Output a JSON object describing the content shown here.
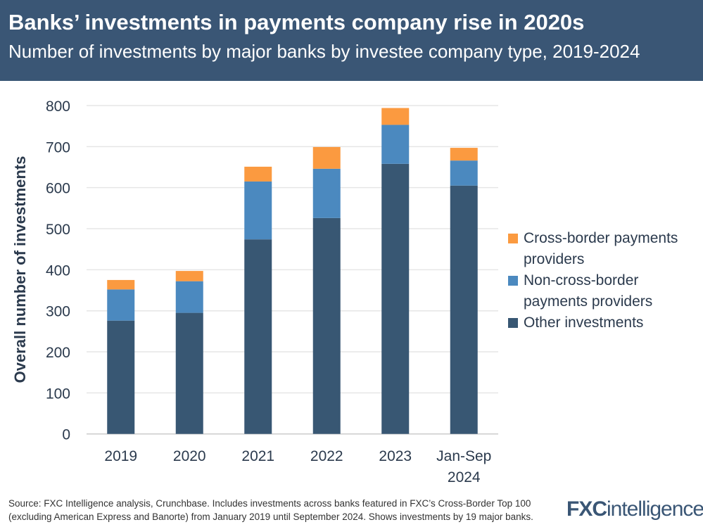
{
  "header": {
    "title": "Banks’ investments in payments company rise in 2020s",
    "subtitle": "Number of investments by major banks by investee company type, 2019-2024"
  },
  "chart_data": {
    "type": "bar",
    "stacked": true,
    "categories": [
      "2019",
      "2020",
      "2021",
      "2022",
      "2023",
      "Jan-Sep 2024"
    ],
    "category_lines": [
      [
        "2019"
      ],
      [
        "2020"
      ],
      [
        "2021"
      ],
      [
        "2022"
      ],
      [
        "2023"
      ],
      [
        "Jan-Sep",
        "2024"
      ]
    ],
    "series": [
      {
        "name": "Other investments",
        "color": "#385773",
        "values": [
          276,
          295,
          474,
          526,
          658,
          605
        ]
      },
      {
        "name": "Non-cross-border payments providers",
        "color": "#4b89bf",
        "values": [
          76,
          77,
          141,
          120,
          95,
          61
        ]
      },
      {
        "name": "Cross-border payments providers",
        "color": "#fb9a40",
        "values": [
          23,
          25,
          36,
          53,
          41,
          31
        ]
      }
    ],
    "legend_lines": [
      [
        "Cross-border payments",
        "providers"
      ],
      [
        "Non-cross-border",
        "payments providers"
      ],
      [
        "Other investments"
      ]
    ],
    "legend_colors": [
      "#fb9a40",
      "#4b89bf",
      "#385773"
    ],
    "ylabel": "Overall number of investments",
    "ylim": [
      0,
      800
    ],
    "yticks": [
      "0",
      "100",
      "200",
      "300",
      "400",
      "500",
      "600",
      "700",
      "800"
    ],
    "grid": true,
    "legend_position": "right"
  },
  "footer": {
    "source_line1": "Source: FXC Intelligence analysis, Crunchbase. Includes investments across banks featured in FXC’s Cross-Border Top 100",
    "source_line2": "(excluding American Express and Banorte) from January 2019 until September 2024. Shows investments by 19 major banks.",
    "logo": "FXCintelligence"
  }
}
